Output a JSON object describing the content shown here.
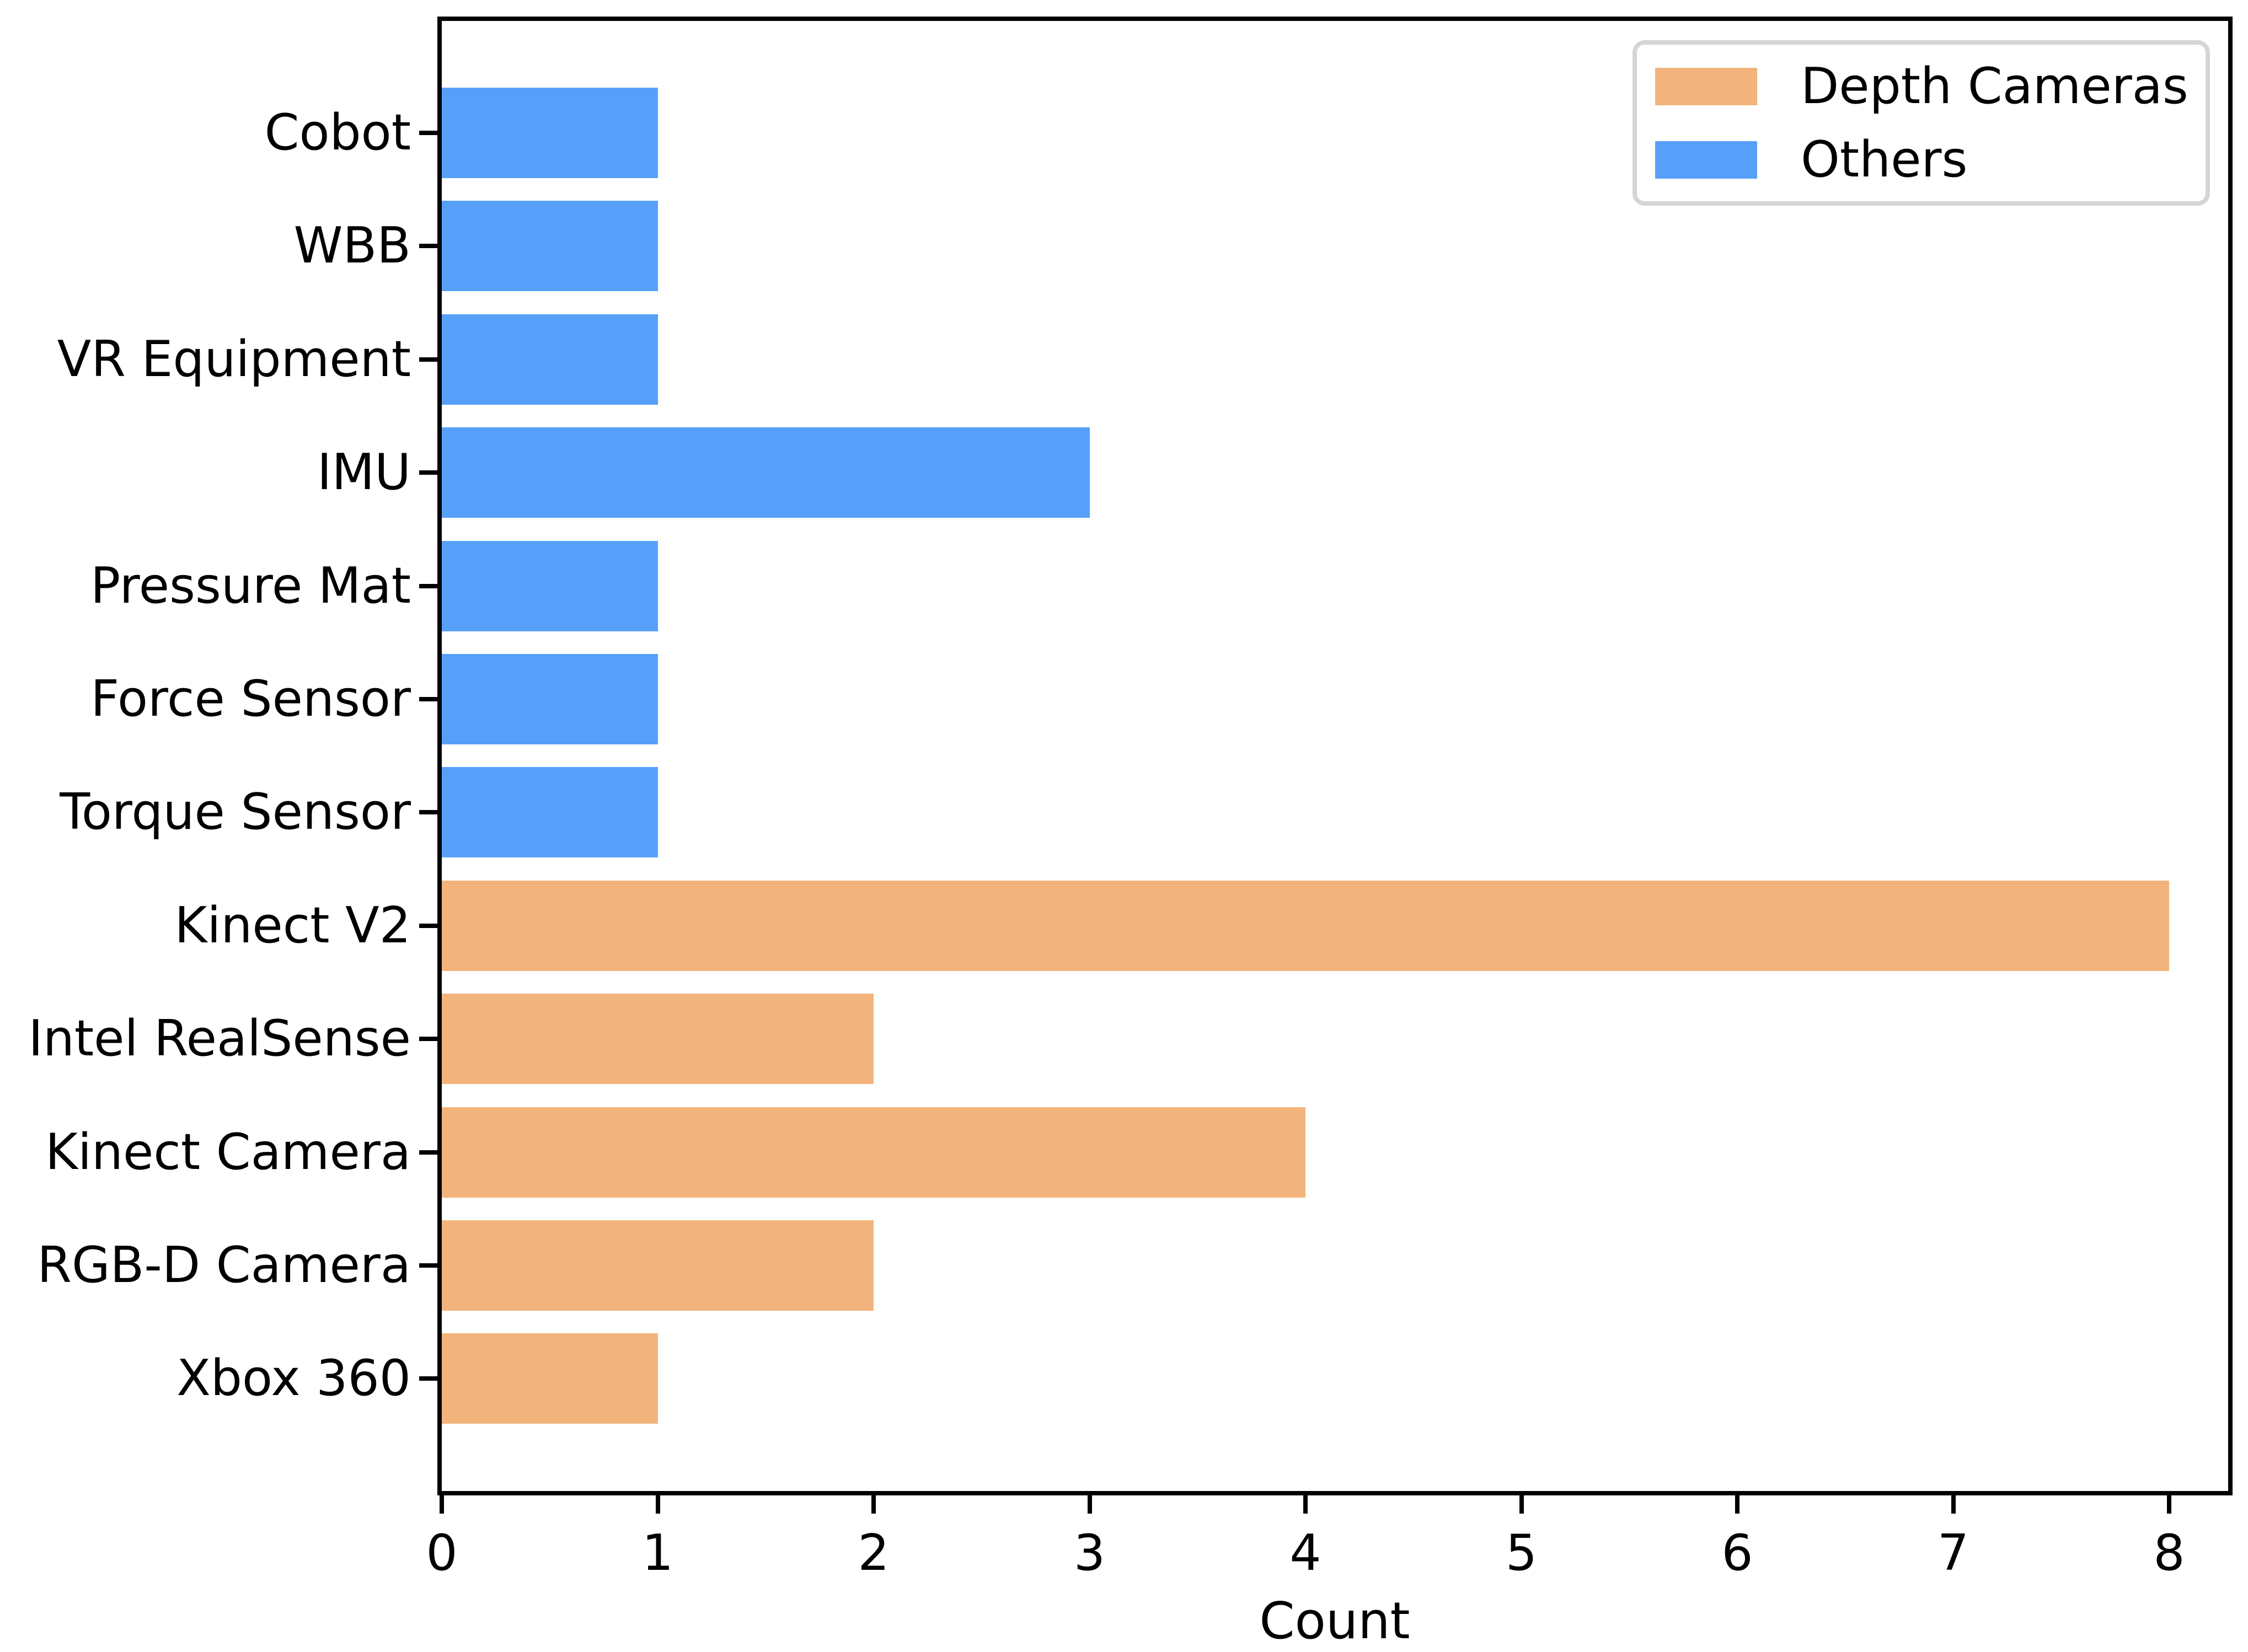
{
  "chart_data": {
    "type": "bar",
    "orientation": "horizontal",
    "title": "",
    "xlabel": "Count",
    "ylabel": "",
    "categories": [
      "Cobot",
      "WBB",
      "VR Equipment",
      "IMU",
      "Pressure Mat",
      "Force Sensor",
      "Torque Sensor",
      "Kinect V2",
      "Intel RealSense",
      "Kinect Camera",
      "RGB-D Camera",
      "Xbox 360"
    ],
    "values": [
      1,
      1,
      1,
      3,
      1,
      1,
      1,
      8,
      2,
      4,
      2,
      1
    ],
    "bar_groups": [
      "Others",
      "Others",
      "Others",
      "Others",
      "Others",
      "Others",
      "Others",
      "Depth Cameras",
      "Depth Cameras",
      "Depth Cameras",
      "Depth Cameras",
      "Depth Cameras"
    ],
    "series": [
      {
        "name": "Depth Cameras",
        "color": "#F2B47C",
        "categories": [
          "Kinect V2",
          "Intel RealSense",
          "Kinect Camera",
          "RGB-D Camera",
          "Xbox 360"
        ],
        "values": [
          8,
          2,
          4,
          2,
          1
        ]
      },
      {
        "name": "Others",
        "color": "#56A0FA",
        "categories": [
          "Cobot",
          "WBB",
          "VR Equipment",
          "IMU",
          "Pressure Mat",
          "Force Sensor",
          "Torque Sensor"
        ],
        "values": [
          1,
          1,
          1,
          3,
          1,
          1,
          1
        ]
      }
    ],
    "x_ticks": [
      "0",
      "1",
      "2",
      "3",
      "4",
      "5",
      "6",
      "7",
      "8"
    ],
    "xlim": [
      0,
      8.3
    ],
    "grid": false,
    "legend": {
      "position": "upper-right",
      "entries": [
        {
          "label": "Depth Cameras",
          "color": "#F2B47C"
        },
        {
          "label": "Others",
          "color": "#56A0FA"
        }
      ]
    },
    "colors": {
      "depth_cameras": "#F2B47C",
      "others": "#56A0FA",
      "axis": "#000000",
      "legend_border": "#d5d5d5"
    }
  }
}
